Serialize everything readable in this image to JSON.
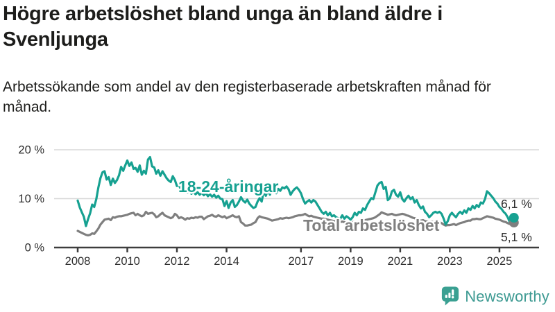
{
  "header": {
    "title": "Högre arbetslöshet bland unga än bland äldre i Svenljunga",
    "subtitle": "Arbetssökande som andel av den registerbaserade arbetskraften månad för månad."
  },
  "chart_data": {
    "type": "line",
    "title": "Högre arbetslöshet bland unga än bland äldre i Svenljunga",
    "x_monthly_from": "2008-01",
    "x_monthly_to": "2025-08",
    "x_tick_years": [
      2008,
      2010,
      2012,
      2014,
      2017,
      2019,
      2021,
      2023,
      2025
    ],
    "ylim": [
      0,
      20
    ],
    "y_ticks": [
      {
        "value": 0,
        "label": "0 %"
      },
      {
        "value": 10,
        "label": "10 %"
      },
      {
        "value": 20,
        "label": "20 %"
      }
    ],
    "grid": "horizontal",
    "colors": {
      "youth": "#16a191",
      "total": "#7f7f7f",
      "gridline": "#d8d8d8",
      "axis": "#3d3d3d",
      "tick_text": "#2f2f2f",
      "end_label_text": "#2b2b2b"
    },
    "series": [
      {
        "name": "18-24-åringar",
        "color": "#16a191",
        "end_label": "6,1 %",
        "values": [
          9.6,
          8.2,
          7.2,
          6.3,
          4.4,
          5.8,
          7.0,
          8.8,
          8.3,
          9.9,
          12.3,
          14.2,
          15.4,
          15.6,
          13.9,
          14.4,
          12.8,
          14.1,
          13.2,
          13.8,
          14.8,
          16.5,
          15.7,
          16.8,
          17.8,
          16.7,
          17.4,
          16.1,
          16.3,
          15.5,
          16.8,
          14.9,
          15.7,
          15.1,
          18.0,
          18.5,
          16.6,
          16.4,
          15.1,
          15.8,
          14.7,
          15.6,
          14.9,
          14.2,
          13.7,
          13.4,
          14.6,
          13.8,
          12.6,
          12.9,
          11.6,
          11.4,
          11.8,
          11.2,
          11.6,
          11.0,
          11.4,
          10.9,
          11.3,
          10.8,
          11.2,
          10.7,
          11.1,
          10.5,
          10.9,
          10.4,
          10.8,
          10.2,
          10.6,
          10.0,
          9.9,
          8.5,
          9.5,
          8.1,
          9.2,
          9.7,
          8.3,
          8.7,
          9.4,
          10.3,
          9.6,
          9.2,
          9.8,
          9.0,
          8.5,
          8.1,
          8.3,
          9.4,
          10.1,
          9.4,
          11.5,
          10.6,
          11.8,
          10.8,
          12.0,
          11.4,
          11.1,
          12.0,
          11.6,
          12.3,
          12.1,
          12.5,
          11.9,
          10.8,
          11.5,
          12.0,
          12.3,
          11.8,
          11.1,
          9.9,
          9.0,
          9.4,
          9.7,
          9.2,
          9.7,
          9.4,
          8.7,
          8.0,
          7.3,
          6.9,
          7.3,
          6.6,
          7.1,
          6.4,
          6.6,
          6.2,
          6.0,
          5.9,
          6.6,
          5.9,
          6.4,
          6.1,
          5.7,
          6.2,
          7.1,
          6.6,
          7.3,
          7.1,
          8.0,
          7.7,
          8.7,
          9.4,
          10.1,
          9.9,
          11.3,
          12.7,
          13.2,
          13.4,
          12.0,
          12.4,
          9.7,
          10.1,
          11.5,
          11.8,
          10.8,
          10.4,
          11.3,
          9.9,
          9.4,
          10.1,
          10.6,
          9.9,
          10.3,
          9.2,
          9.7,
          8.7,
          8.0,
          8.4,
          7.3,
          6.9,
          6.2,
          6.6,
          7.1,
          7.3,
          7.1,
          7.3,
          6.9,
          5.9,
          4.7,
          5.4,
          6.6,
          7.1,
          6.6,
          6.2,
          6.9,
          7.3,
          6.9,
          7.6,
          7.1,
          8.0,
          7.7,
          8.5,
          8.0,
          8.7,
          8.3,
          9.2,
          9.0,
          9.9,
          11.5,
          11.1,
          10.6,
          10.1,
          9.4,
          9.0,
          8.3,
          7.9,
          7.3,
          6.9,
          6.2,
          5.2,
          4.7,
          6.1
        ]
      },
      {
        "name": "Total arbetslöshet",
        "color": "#7f7f7f",
        "end_label": "5,1 %",
        "values": [
          3.4,
          3.2,
          3.0,
          2.8,
          2.6,
          2.5,
          2.6,
          2.9,
          2.8,
          3.3,
          3.9,
          4.7,
          5.2,
          5.7,
          5.8,
          5.9,
          5.6,
          6.2,
          6.1,
          6.3,
          6.4,
          6.4,
          6.5,
          6.6,
          6.7,
          6.9,
          7.0,
          7.1,
          6.6,
          6.9,
          6.6,
          6.4,
          6.6,
          7.3,
          6.9,
          7.0,
          7.1,
          6.8,
          6.2,
          6.4,
          6.8,
          7.1,
          6.6,
          6.4,
          6.2,
          6.0,
          6.2,
          6.9,
          6.6,
          6.0,
          6.2,
          6.0,
          5.7,
          6.0,
          5.9,
          6.1,
          6.0,
          6.2,
          6.1,
          6.3,
          6.3,
          5.8,
          6.1,
          6.4,
          6.5,
          6.7,
          6.4,
          6.3,
          6.6,
          6.4,
          6.2,
          6.4,
          6.0,
          6.2,
          6.4,
          6.6,
          6.3,
          6.2,
          6.4,
          5.2,
          4.9,
          4.5,
          4.5,
          4.6,
          4.7,
          5.0,
          5.2,
          6.0,
          6.4,
          6.2,
          6.1,
          6.0,
          5.9,
          5.7,
          5.5,
          5.6,
          5.7,
          5.8,
          6.0,
          5.9,
          6.0,
          6.1,
          6.0,
          6.1,
          6.2,
          6.4,
          6.5,
          6.6,
          6.6,
          6.7,
          6.9,
          6.6,
          6.4,
          6.5,
          6.3,
          6.2,
          6.1,
          6.0,
          5.9,
          5.9,
          5.8,
          5.7,
          5.6,
          5.5,
          5.4,
          5.3,
          5.2,
          5.2,
          5.3,
          5.2,
          5.1,
          5.2,
          5.1,
          5.2,
          5.3,
          5.2,
          5.3,
          5.4,
          5.5,
          5.6,
          5.7,
          5.8,
          5.9,
          6.0,
          6.2,
          6.5,
          6.8,
          7.2,
          7.0,
          6.9,
          6.7,
          6.8,
          6.9,
          6.7,
          6.6,
          6.7,
          6.8,
          6.9,
          6.8,
          6.6,
          6.5,
          6.3,
          6.1,
          6.0,
          5.9,
          5.7,
          5.5,
          5.6,
          5.4,
          5.3,
          5.2,
          5.3,
          5.2,
          5.4,
          5.2,
          5.2,
          5.0,
          4.7,
          4.5,
          4.6,
          4.6,
          4.7,
          4.8,
          4.6,
          4.8,
          5.0,
          5.1,
          5.2,
          5.4,
          5.5,
          5.5,
          5.8,
          5.8,
          5.9,
          5.8,
          5.8,
          6.0,
          6.2,
          6.4,
          6.3,
          6.2,
          6.1,
          5.9,
          5.8,
          5.7,
          5.5,
          5.3,
          5.2,
          5.0,
          4.8,
          4.8,
          5.1
        ]
      }
    ],
    "legend_position": "inline-labels"
  },
  "footer": {
    "brand": "Newsworthy",
    "brand_color": "#3d9a92"
  }
}
